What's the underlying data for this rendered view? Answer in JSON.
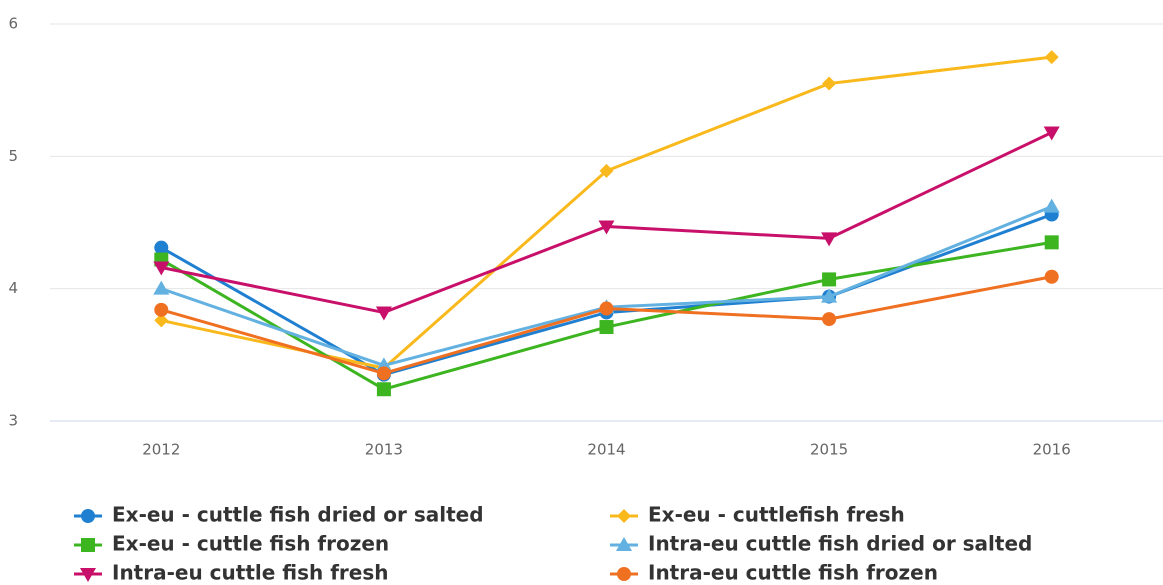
{
  "chart_data": {
    "type": "line",
    "categories": [
      "2012",
      "2013",
      "2014",
      "2015",
      "2016"
    ],
    "ylim": [
      3,
      6
    ],
    "yticks": [
      3,
      4,
      5,
      6
    ],
    "grid": true,
    "series": [
      {
        "name": "Ex-eu - cuttle fish dried or salted",
        "color": "#1f7fd0",
        "marker": "circle",
        "values": [
          4.31,
          3.35,
          3.82,
          3.94,
          4.56
        ]
      },
      {
        "name": "Ex-eu - cuttlefish fresh",
        "color": "#f9b91d",
        "marker": "diamond",
        "values": [
          3.76,
          3.4,
          4.89,
          5.55,
          5.75
        ]
      },
      {
        "name": "Ex-eu - cuttle fish frozen",
        "color": "#3cb521",
        "marker": "square",
        "values": [
          4.22,
          3.24,
          3.71,
          4.07,
          4.35
        ]
      },
      {
        "name": "Intra-eu cuttle fish dried or salted",
        "color": "#62b1e0",
        "marker": "triangle",
        "values": [
          4.0,
          3.42,
          3.86,
          3.94,
          4.62
        ]
      },
      {
        "name": "Intra-eu cuttle fish fresh",
        "color": "#c8106a",
        "marker": "triangle-down",
        "values": [
          4.16,
          3.82,
          4.47,
          4.38,
          5.18
        ]
      },
      {
        "name": "Intra-eu cuttle fish frozen",
        "color": "#f07022",
        "marker": "circle",
        "values": [
          3.84,
          3.36,
          3.85,
          3.77,
          4.09
        ]
      }
    ]
  }
}
